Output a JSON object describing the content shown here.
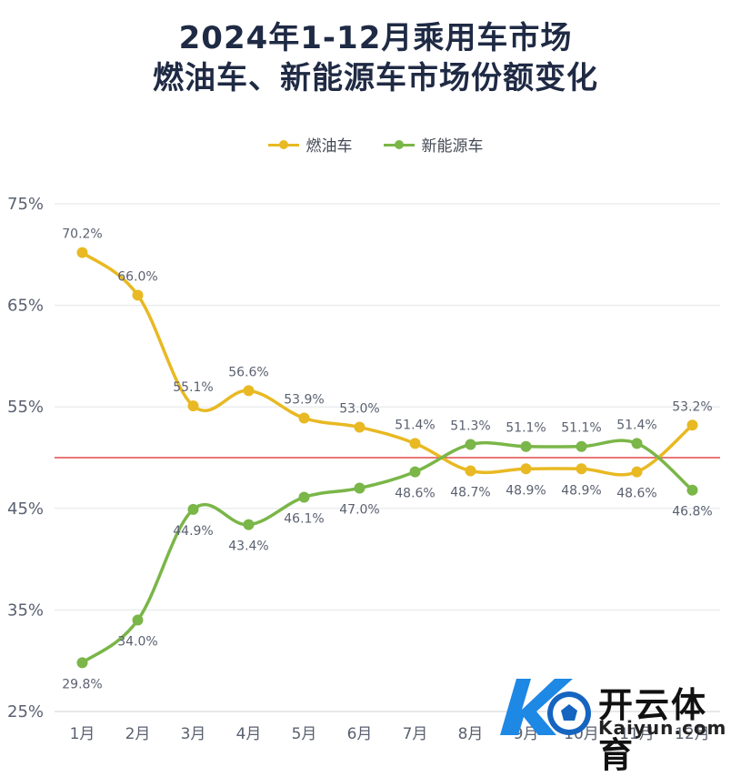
{
  "title_line1": "2024年1-12月乘用车市场",
  "title_line2": "燃油车、新能源车市场份额变化",
  "legend": [
    {
      "name": "燃油车",
      "color": "#e8b923"
    },
    {
      "name": "新能源车",
      "color": "#7ab648"
    }
  ],
  "chart_data": {
    "type": "line",
    "title": "2024年1-12月乘用车市场 燃油车、新能源车市场份额变化",
    "x": [
      "1月",
      "2月",
      "3月",
      "4月",
      "5月",
      "6月",
      "7月",
      "8月",
      "9月",
      "10月",
      "11月",
      "12月"
    ],
    "y_ticks": [
      "75%",
      "65%",
      "55%",
      "45%",
      "35%",
      "25%"
    ],
    "ylim": [
      25,
      75
    ],
    "y_tick_values": [
      75,
      65,
      55,
      45,
      35,
      25
    ],
    "reference_line": {
      "value": 50,
      "color": "#e04a4a"
    },
    "grid": "horizontal",
    "legend_position": "top-center",
    "series": [
      {
        "name": "燃油车",
        "color": "#e8b923",
        "values": [
          70.2,
          66.0,
          55.1,
          56.6,
          53.9,
          53.0,
          51.4,
          48.7,
          48.9,
          48.9,
          48.6,
          53.2
        ],
        "labels": [
          "70.2%",
          "66.0%",
          "55.1%",
          "56.6%",
          "53.9%",
          "53.0%",
          "51.4%",
          "48.7%",
          "48.9%",
          "48.9%",
          "48.6%",
          "53.2%"
        ]
      },
      {
        "name": "新能源车",
        "color": "#7ab648",
        "values": [
          29.8,
          34.0,
          44.9,
          43.4,
          46.1,
          47.0,
          48.6,
          51.3,
          51.1,
          51.1,
          51.4,
          46.8
        ],
        "labels": [
          "29.8%",
          "34.0%",
          "44.9%",
          "43.4%",
          "46.1%",
          "47.0%",
          "48.6%",
          "51.3%",
          "51.1%",
          "51.1%",
          "51.4%",
          "46.8%"
        ]
      }
    ]
  },
  "watermark": {
    "brand": "开云体育",
    "url": "Kaiyun.com"
  }
}
